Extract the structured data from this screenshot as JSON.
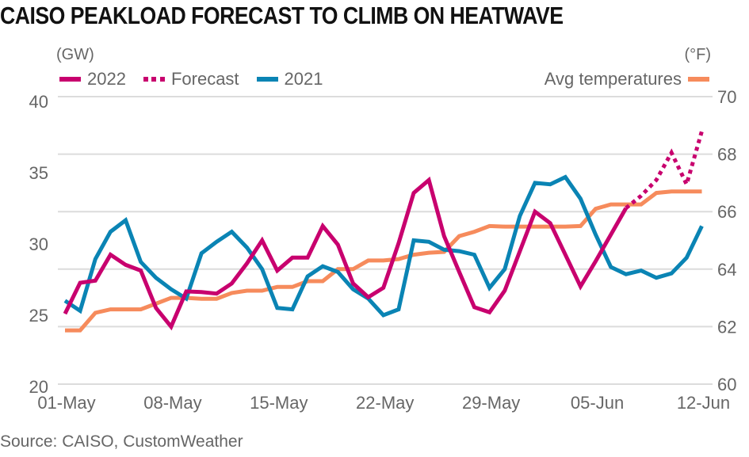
{
  "title": "CAISO PEAKLOAD FORECAST TO CLIMB ON HEATWAVE",
  "source": "Source: CAISO, CustomWeather",
  "left_unit": "(GW)",
  "right_unit": "(°F)",
  "legend": {
    "left": [
      {
        "label": "2022",
        "style": "solid",
        "color": "#C8006E"
      },
      {
        "label": "Forecast",
        "style": "dotted",
        "color": "#C8006E"
      },
      {
        "label": "2021",
        "style": "solid",
        "color": "#0A84B4"
      }
    ],
    "right": [
      {
        "label": "Avg temperatures",
        "style": "solid",
        "color": "#F68B5C"
      }
    ]
  },
  "colors": {
    "s2022": "#C8006E",
    "s2021": "#0A84B4",
    "temp": "#F68B5C",
    "grid": "#dcdcdc"
  },
  "chart_data": {
    "type": "line",
    "title": "CAISO PEAKLOAD FORECAST TO CLIMB ON HEATWAVE",
    "xlabel": "",
    "ylabel": "(GW)",
    "y2label": "(°F)",
    "x_start": "01-May",
    "x_days": 43,
    "x_ticks": [
      {
        "day": 0,
        "label": "01-May"
      },
      {
        "day": 7,
        "label": "08-May"
      },
      {
        "day": 14,
        "label": "15-May"
      },
      {
        "day": 21,
        "label": "22-May"
      },
      {
        "day": 28,
        "label": "29-May"
      },
      {
        "day": 35,
        "label": "05-Jun"
      },
      {
        "day": 42,
        "label": "12-Jun"
      }
    ],
    "ylim": [
      20,
      40
    ],
    "y_ticks": [
      40,
      35,
      30,
      25,
      20
    ],
    "y2lim": [
      60,
      70
    ],
    "y2_ticks": [
      70,
      68,
      66,
      64,
      62,
      60
    ],
    "grid": true,
    "legend_position": "top",
    "series": [
      {
        "name": "2022",
        "axis": "left",
        "style": "solid",
        "start_day": 0,
        "values": [
          24.9,
          27.05,
          27.2,
          29.0,
          28.3,
          27.9,
          25.3,
          24.0,
          26.45,
          26.4,
          26.3,
          27.0,
          28.4,
          30.0,
          27.9,
          28.8,
          28.8,
          31.0,
          29.7,
          27.0,
          26.05,
          26.7,
          29.8,
          33.3,
          34.2,
          30.3,
          27.8,
          25.35,
          25.0,
          26.5,
          29.25,
          32.0,
          31.2,
          29.0,
          26.8,
          28.55,
          30.4,
          32.25
        ]
      },
      {
        "name": "Forecast",
        "axis": "left",
        "style": "dotted",
        "start_day": 37,
        "values": [
          32.25,
          33.1,
          34.2,
          36.1,
          33.9,
          37.6
        ]
      },
      {
        "name": "2021",
        "axis": "left",
        "style": "solid",
        "start_day": 0,
        "values": [
          25.8,
          25.1,
          28.7,
          30.6,
          31.4,
          28.5,
          27.4,
          26.6,
          25.95,
          29.1,
          29.9,
          30.6,
          29.5,
          28.0,
          25.3,
          25.2,
          27.5,
          28.2,
          27.8,
          26.6,
          25.95,
          24.8,
          25.2,
          30.0,
          29.9,
          29.35,
          29.25,
          29.0,
          26.7,
          28.0,
          31.7,
          34.0,
          33.9,
          34.4,
          32.9,
          30.4,
          28.15,
          27.65,
          27.9,
          27.4,
          27.7,
          28.8,
          31.0
        ]
      },
      {
        "name": "Avg temperatures",
        "axis": "right",
        "style": "solid",
        "start_day": 0,
        "values": [
          61.87,
          61.87,
          62.48,
          62.6,
          62.6,
          62.6,
          62.8,
          63.0,
          63.0,
          62.97,
          62.97,
          63.17,
          63.25,
          63.25,
          63.38,
          63.38,
          63.58,
          63.58,
          64.0,
          64.0,
          64.3,
          64.3,
          64.35,
          64.5,
          64.57,
          64.6,
          65.15,
          65.3,
          65.5,
          65.48,
          65.48,
          65.48,
          65.48,
          65.48,
          65.5,
          66.1,
          66.25,
          66.25,
          66.25,
          66.65,
          66.7,
          66.7,
          66.7
        ]
      }
    ]
  }
}
